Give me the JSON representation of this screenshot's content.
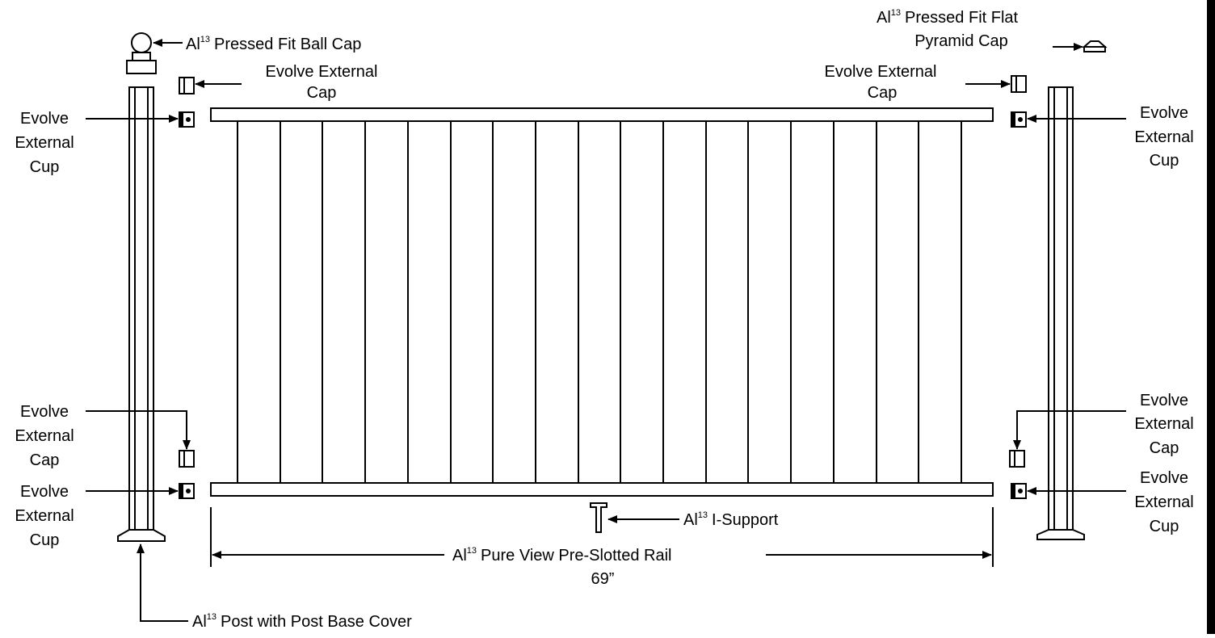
{
  "labels": {
    "ball_cap": {
      "prefix": "Al",
      "sup": "13",
      "text": "Pressed Fit Ball Cap"
    },
    "pyramid_cap": {
      "line1_prefix": "Al",
      "line1_sup": "13",
      "line1_text": "Pressed Fit Flat",
      "line2": "Pyramid Cap"
    },
    "ext_cap_top_left": {
      "line1": "Evolve External",
      "line2": "Cap"
    },
    "ext_cap_top_right": {
      "line1": "Evolve External",
      "line2": "Cap"
    },
    "ext_cup_top_left": {
      "line1": "Evolve",
      "line2": "External",
      "line3": "Cup"
    },
    "ext_cup_top_right": {
      "line1": "Evolve",
      "line2": "External",
      "line3": "Cup"
    },
    "ext_cap_bottom_left": {
      "line1": "Evolve",
      "line2": "External",
      "line3": "Cap"
    },
    "ext_cap_bottom_right": {
      "line1": "Evolve",
      "line2": "External",
      "line3": "Cap"
    },
    "ext_cup_bottom_left": {
      "line1": "Evolve",
      "line2": "External",
      "line3": "Cup"
    },
    "ext_cup_bottom_right": {
      "line1": "Evolve",
      "line2": "External",
      "line3": "Cup"
    },
    "i_support": {
      "prefix": "Al",
      "sup": "13",
      "text": "I-Support"
    },
    "rail": {
      "prefix": "Al",
      "sup": "13",
      "text": "Pure View Pre-Slotted Rail",
      "length": "69”"
    },
    "post": {
      "prefix": "Al",
      "sup": "13",
      "text": "Post with Post Base Cover"
    }
  },
  "balusters": {
    "count": 18
  },
  "colors": {
    "line": "#000000",
    "background": "#ffffff"
  }
}
